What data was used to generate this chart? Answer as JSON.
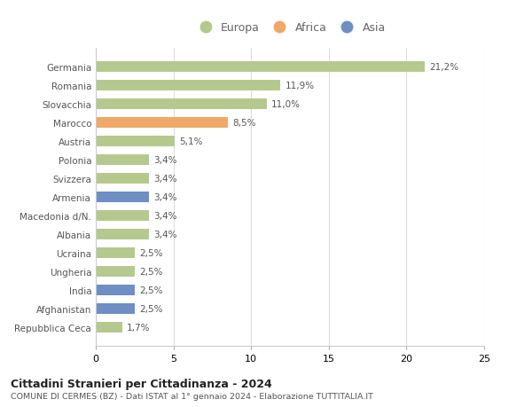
{
  "categories": [
    "Repubblica Ceca",
    "Afghanistan",
    "India",
    "Ungheria",
    "Ucraina",
    "Albania",
    "Macedonia d/N.",
    "Armenia",
    "Svizzera",
    "Polonia",
    "Austria",
    "Marocco",
    "Slovacchia",
    "Romania",
    "Germania"
  ],
  "values": [
    1.7,
    2.5,
    2.5,
    2.5,
    2.5,
    3.4,
    3.4,
    3.4,
    3.4,
    3.4,
    5.1,
    8.5,
    11.0,
    11.9,
    21.2
  ],
  "colors": [
    "#b5c98e",
    "#6e8ec4",
    "#6e8ec4",
    "#b5c98e",
    "#b5c98e",
    "#b5c98e",
    "#b5c98e",
    "#6e8ec4",
    "#b5c98e",
    "#b5c98e",
    "#b5c98e",
    "#f0a868",
    "#b5c98e",
    "#b5c98e",
    "#b5c98e"
  ],
  "labels": [
    "1,7%",
    "2,5%",
    "2,5%",
    "2,5%",
    "2,5%",
    "3,4%",
    "3,4%",
    "3,4%",
    "3,4%",
    "3,4%",
    "5,1%",
    "8,5%",
    "11,0%",
    "11,9%",
    "21,2%"
  ],
  "legend": [
    {
      "label": "Europa",
      "color": "#b5c98e"
    },
    {
      "label": "Africa",
      "color": "#f0a868"
    },
    {
      "label": "Asia",
      "color": "#6e8ec4"
    }
  ],
  "title": "Cittadini Stranieri per Cittadinanza - 2024",
  "subtitle": "COMUNE DI CERMES (BZ) - Dati ISTAT al 1° gennaio 2024 - Elaborazione TUTTITALIA.IT",
  "xlim": [
    0,
    25
  ],
  "xticks": [
    0,
    5,
    10,
    15,
    20,
    25
  ],
  "background_color": "#ffffff",
  "bar_height": 0.55,
  "grid_color": "#dddddd",
  "label_color": "#555555",
  "ytick_color": "#555555"
}
